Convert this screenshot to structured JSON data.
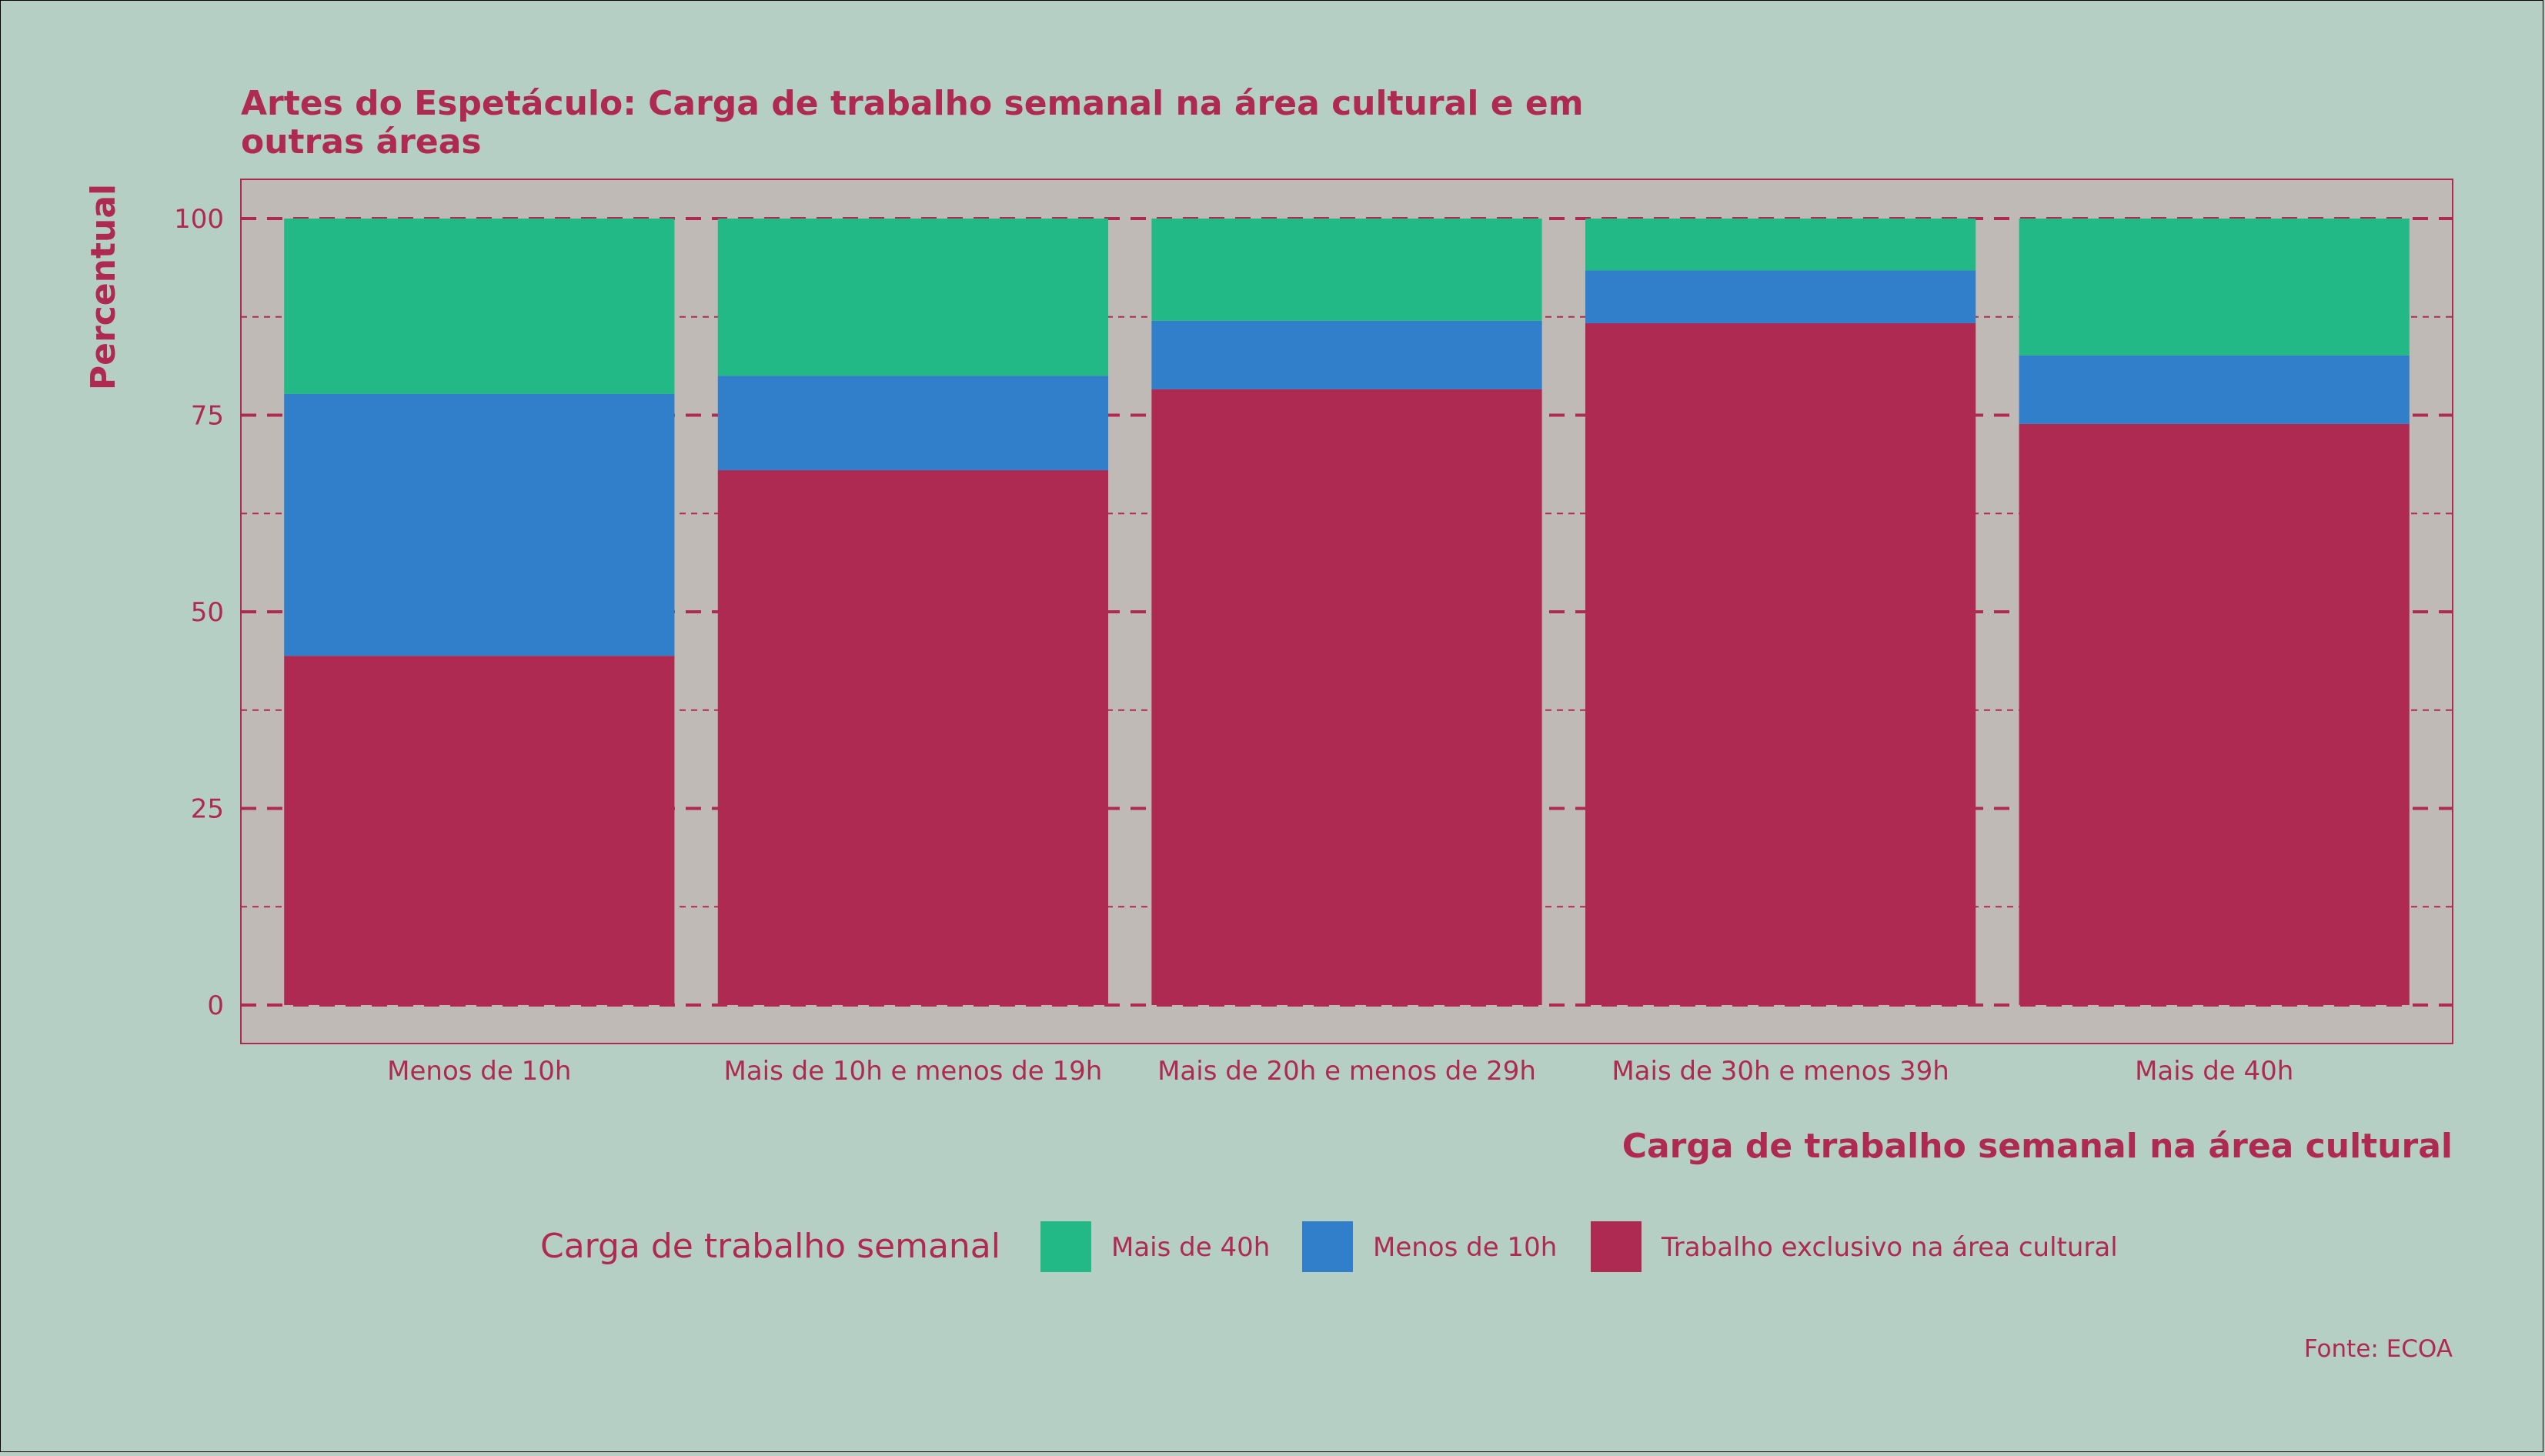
{
  "chart_data": {
    "type": "bar",
    "stacked": true,
    "title": "Artes do Espetáculo: Carga de trabalho semanal na área cultural e em outras áreas",
    "title_lines": [
      "Artes do Espetáculo: Carga de trabalho semanal na área cultural e em",
      "outras áreas"
    ],
    "xlabel": "Carga de trabalho semanal na área cultural",
    "ylabel": "Percentual",
    "ylim": [
      0,
      100
    ],
    "yticks": [
      "0",
      "25",
      "50",
      "75",
      "100"
    ],
    "grid": true,
    "legend_position": "bottom",
    "legend_title": "Carga de trabalho semanal",
    "caption": "Fonte: ECOA",
    "categories": [
      "Menos de 10h",
      "Mais de 10h e menos de 19h",
      "Mais de 20h e menos de 29h",
      "Mais de 30h e menos 39h",
      "Mais de 40h"
    ],
    "series": [
      {
        "name": "Trabalho exclusivo na área cultural",
        "color": "#af2a53",
        "values": [
          44.4,
          68.0,
          78.3,
          86.7,
          73.9
        ]
      },
      {
        "name": "Menos de 10h",
        "color": "#317fcb",
        "values": [
          33.3,
          12.0,
          8.7,
          6.7,
          8.7
        ]
      },
      {
        "name": "Mais de 40h",
        "color": "#23b986",
        "values": [
          22.3,
          20.0,
          13.0,
          6.6,
          17.4
        ]
      }
    ],
    "legend_order": [
      2,
      1,
      0
    ],
    "colors": {
      "text": "#af2a53",
      "panel": "#bfbab5",
      "background": "#b6cfc5"
    }
  }
}
